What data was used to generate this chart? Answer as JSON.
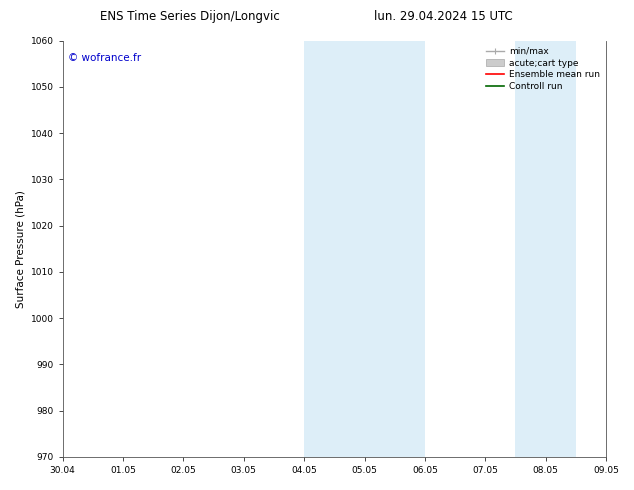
{
  "title_left": "ENS Time Series Dijon/Longvic",
  "title_right": "lun. 29.04.2024 15 UTC",
  "ylabel": "Surface Pressure (hPa)",
  "ylim": [
    970,
    1060
  ],
  "yticks": [
    970,
    980,
    990,
    1000,
    1010,
    1020,
    1030,
    1040,
    1050,
    1060
  ],
  "xtick_labels": [
    "30.04",
    "01.05",
    "02.05",
    "03.05",
    "04.05",
    "05.05",
    "06.05",
    "07.05",
    "08.05",
    "09.05"
  ],
  "watermark": "© wofrance.fr",
  "watermark_color": "#0000cc",
  "background_color": "#ffffff",
  "shaded_regions": [
    {
      "xstart": 4.0,
      "xend": 6.0,
      "color": "#ddeef8"
    },
    {
      "xstart": 7.5,
      "xend": 8.5,
      "color": "#ddeef8"
    }
  ],
  "legend_items": [
    {
      "label": "min/max",
      "color": "#aaaaaa",
      "lw": 1.0,
      "linestyle": "-",
      "type": "errbar"
    },
    {
      "label": "acute;cart type",
      "color": "#cccccc",
      "lw": 5,
      "linestyle": "-",
      "type": "thick"
    },
    {
      "label": "Ensemble mean run",
      "color": "#ff0000",
      "lw": 1.2,
      "linestyle": "-",
      "type": "line"
    },
    {
      "label": "Controll run",
      "color": "#006600",
      "lw": 1.2,
      "linestyle": "-",
      "type": "line"
    }
  ],
  "title_fontsize": 8.5,
  "tick_fontsize": 6.5,
  "ylabel_fontsize": 7.5,
  "watermark_fontsize": 7.5,
  "legend_fontsize": 6.5
}
